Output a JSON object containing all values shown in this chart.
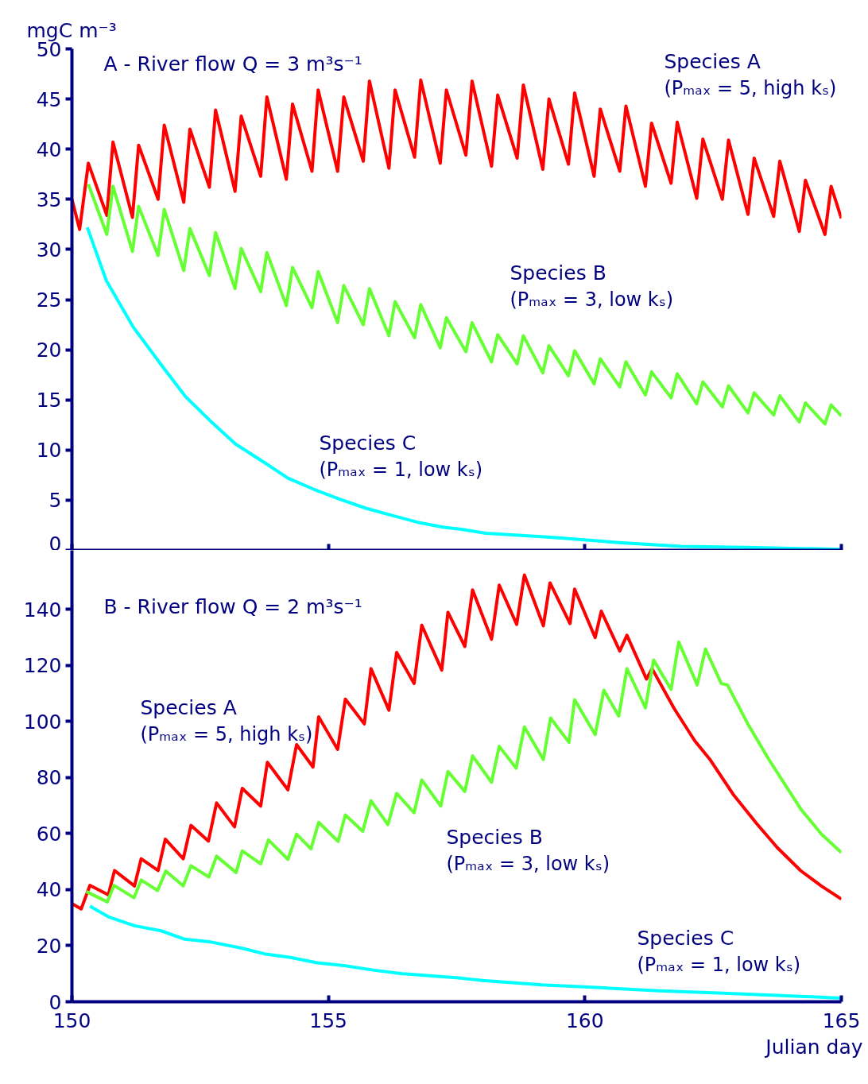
{
  "chart_data": [
    {
      "type": "line",
      "title": "A - River flow Q = 3 m³s⁻¹",
      "ylabel": "mgC m⁻³",
      "xlim": [
        150,
        165
      ],
      "ylim": [
        0,
        50
      ],
      "yticks": [
        0,
        5,
        10,
        15,
        20,
        25,
        30,
        35,
        40,
        45,
        50
      ],
      "xticks": [
        150,
        155,
        160,
        165
      ],
      "tick_labels": "y",
      "x": [
        150,
        150.15,
        150.32,
        150.68,
        150.8,
        151.18,
        151.3,
        151.68,
        151.8,
        152.18,
        152.3,
        152.68,
        152.8,
        153.18,
        153.3,
        153.68,
        153.8,
        154.18,
        154.3,
        154.68,
        154.8,
        155.18,
        155.3,
        155.68,
        155.8,
        156.18,
        156.3,
        156.68,
        156.8,
        157.18,
        157.3,
        157.68,
        157.8,
        158.18,
        158.3,
        158.68,
        158.8,
        159.18,
        159.3,
        159.68,
        159.8,
        160.18,
        160.3,
        160.68,
        160.8,
        161.18,
        161.3,
        161.68,
        161.8,
        162.18,
        162.3,
        162.68,
        162.8,
        163.18,
        163.3,
        163.68,
        163.8,
        164.18,
        164.3,
        164.68,
        164.8,
        165
      ],
      "annotations": [
        "(Pₘₐₓ = 5, high kₛ)",
        "(Pₘₐₓ = 3, low kₛ)",
        "(Pₘₐₓ = 1, low kₛ)"
      ],
      "series": [
        {
          "name": "Species A",
          "color": "#ff0000",
          "values": [
            35,
            32,
            38.6,
            33.4,
            40.7,
            33.2,
            40.4,
            35,
            42.4,
            34.7,
            42,
            36.2,
            43.9,
            35.8,
            43.3,
            37.3,
            45.2,
            37,
            44.5,
            37.8,
            45.9,
            37.8,
            45.2,
            38.8,
            46.8,
            38.1,
            45.9,
            39.2,
            46.9,
            38.6,
            45.9,
            39.4,
            46.8,
            38.3,
            45.4,
            39.1,
            46.4,
            38,
            45,
            38.5,
            45.6,
            37.3,
            44,
            37.8,
            44.3,
            36.3,
            42.6,
            36.6,
            42.7,
            35.1,
            41,
            35,
            40.9,
            33.5,
            39.1,
            33.3,
            38.8,
            31.8,
            36.9,
            31.5,
            36.3,
            33.1
          ]
        },
        {
          "name": "Species B",
          "color": "#66ff33",
          "values": [
            null,
            null,
            36.5,
            31.5,
            36.3,
            29.8,
            34.3,
            29.4,
            34,
            27.9,
            32.1,
            27.4,
            31.7,
            26.1,
            30.1,
            25.8,
            29.7,
            24.4,
            28.2,
            24.2,
            27.8,
            22.7,
            26.4,
            22.5,
            26.1,
            21.4,
            24.8,
            21.2,
            24.5,
            20.2,
            23.2,
            19.8,
            22.7,
            18.8,
            21.5,
            18.6,
            21.4,
            17.7,
            20.4,
            17.4,
            19.9,
            16.6,
            19.1,
            16.3,
            18.8,
            15.5,
            17.8,
            15.2,
            17.6,
            14.6,
            16.8,
            14.3,
            16.4,
            13.7,
            15.7,
            13.5,
            15.4,
            12.8,
            14.7,
            12.6,
            14.5,
            13.4
          ]
        },
        {
          "name": "Species C",
          "color": "#00ffff",
          "x": [
            150.3,
            150.67,
            151.19,
            151.74,
            152.22,
            152.72,
            153.19,
            153.77,
            154.21,
            154.71,
            155.22,
            155.73,
            156.23,
            156.74,
            157.25,
            157.59,
            158.07,
            159.33,
            160.6,
            161.87,
            163.13,
            165
          ],
          "values": [
            32.2,
            26.9,
            22.3,
            18.5,
            15.3,
            12.8,
            10.6,
            8.7,
            7.2,
            6.1,
            5.1,
            4.2,
            3.5,
            2.8,
            2.3,
            2.1,
            1.7,
            1.3,
            0.8,
            0.4,
            0.3,
            0.1
          ]
        }
      ]
    },
    {
      "type": "line",
      "title": "B - River flow Q = 2 m³s⁻¹",
      "xlabel": "Julian day",
      "xlim": [
        150,
        165
      ],
      "ylim": [
        0,
        161
      ],
      "yticks": [
        0,
        20,
        40,
        60,
        80,
        100,
        120,
        140
      ],
      "xticks": [
        150,
        155,
        160,
        165
      ],
      "annotations": [
        "(Pₘₐₓ = 5, high kₛ)",
        "(Pₘₐₓ = 3, low kₛ)",
        "(Pₘₐₓ = 1, low kₛ)"
      ],
      "series": [
        {
          "name": "Species A",
          "color": "#ff0000",
          "x": [
            150,
            150.18,
            150.35,
            150.71,
            150.83,
            151.22,
            151.35,
            151.68,
            151.82,
            152.17,
            152.32,
            152.66,
            152.82,
            153.17,
            153.32,
            153.68,
            153.81,
            154.21,
            154.38,
            154.7,
            154.81,
            155.18,
            155.33,
            155.7,
            155.83,
            156.18,
            156.33,
            156.67,
            156.82,
            157.21,
            157.33,
            157.66,
            157.81,
            158.18,
            158.33,
            158.67,
            158.82,
            159.19,
            159.32,
            159.71,
            159.8,
            160.2,
            160.32,
            160.68,
            160.82,
            161.2,
            161.31,
            161.74,
            162.14,
            162.43,
            162.89,
            163.35,
            163.75,
            164.21,
            164.61,
            165
          ],
          "values": [
            35,
            33.1,
            41.5,
            38.1,
            46.8,
            41.3,
            51,
            46.8,
            58,
            51,
            62.9,
            57.3,
            70.9,
            62.4,
            76.1,
            69.8,
            85.4,
            75.6,
            91.7,
            83.7,
            101.6,
            90,
            107.9,
            99.1,
            118.8,
            104,
            124.6,
            113.5,
            134.3,
            118.3,
            138.9,
            126.7,
            146.9,
            129.3,
            148.6,
            134.6,
            152.2,
            134.1,
            149.4,
            134.9,
            147.2,
            129.9,
            139.3,
            125.1,
            130.7,
            115.1,
            118.8,
            104.6,
            93.1,
            86.6,
            74,
            63.5,
            55,
            46.7,
            41.3,
            36.6
          ]
        },
        {
          "name": "Species B",
          "color": "#66ff33",
          "x": [
            150.28,
            150.69,
            150.82,
            151.21,
            151.35,
            151.67,
            151.83,
            152.17,
            152.32,
            152.67,
            152.82,
            153.2,
            153.32,
            153.68,
            153.83,
            154.21,
            154.38,
            154.66,
            154.81,
            155.19,
            155.33,
            155.67,
            155.83,
            156.16,
            156.33,
            156.67,
            156.82,
            157.19,
            157.33,
            157.66,
            157.81,
            158.18,
            158.33,
            158.66,
            158.82,
            159.19,
            159.33,
            159.69,
            159.8,
            160.2,
            160.37,
            160.66,
            160.82,
            161.18,
            161.34,
            161.68,
            161.83,
            162.19,
            162.35,
            162.66,
            162.78,
            163.17,
            163.58,
            164.21,
            164.61,
            165
          ],
          "values": [
            39.3,
            35.6,
            41.5,
            37.1,
            43.4,
            39.7,
            46.6,
            41.3,
            48.5,
            44.5,
            51.9,
            46.1,
            53.8,
            49.2,
            57.7,
            50.8,
            59.8,
            54.5,
            64,
            57.2,
            66.6,
            60.8,
            71.7,
            63.2,
            74.3,
            67.4,
            79.1,
            69.8,
            82.1,
            75,
            87.7,
            78.3,
            91.1,
            83.3,
            98,
            86.4,
            101.2,
            92.5,
            107.7,
            95.3,
            111.1,
            101.9,
            118.8,
            104.8,
            121.9,
            111.4,
            128.3,
            113,
            125.8,
            113.5,
            113,
            99.3,
            86.6,
            68.7,
            59.8,
            53.2
          ]
        },
        {
          "name": "Species C",
          "color": "#00ffff",
          "x": [
            150.35,
            150.71,
            151.22,
            151.74,
            152.2,
            152.71,
            153.29,
            153.75,
            154.26,
            154.78,
            155.3,
            155.87,
            156.44,
            157.02,
            157.59,
            158.01,
            159.16,
            160.31,
            161.45,
            162.6,
            163.75,
            165
          ],
          "values": [
            34.1,
            30.3,
            27.1,
            25.3,
            22.3,
            21.3,
            19.2,
            17.1,
            15.8,
            13.9,
            12.9,
            11.3,
            10,
            9.2,
            8.4,
            7.6,
            6,
            5,
            3.9,
            3.1,
            2.3,
            1.3
          ]
        }
      ]
    }
  ]
}
